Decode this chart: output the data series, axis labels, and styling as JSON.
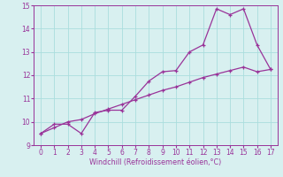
{
  "xlabel": "Windchill (Refroidissement éolien,°C)",
  "x_values": [
    0,
    1,
    2,
    3,
    4,
    5,
    6,
    7,
    8,
    9,
    10,
    11,
    12,
    13,
    14,
    15,
    16,
    17
  ],
  "y_curve": [
    9.5,
    9.9,
    9.9,
    9.5,
    10.4,
    10.5,
    10.5,
    11.1,
    11.75,
    12.15,
    12.2,
    13.0,
    13.3,
    14.85,
    14.6,
    14.85,
    13.3,
    12.25
  ],
  "y_line": [
    9.5,
    9.75,
    10.0,
    10.1,
    10.35,
    10.55,
    10.75,
    10.95,
    11.15,
    11.35,
    11.5,
    11.7,
    11.9,
    12.05,
    12.2,
    12.35,
    12.15,
    12.25
  ],
  "line_color": "#993399",
  "bg_color": "#d8f0f0",
  "grid_color": "#aadddd",
  "ylim": [
    9,
    15
  ],
  "xlim": [
    -0.5,
    17.5
  ],
  "yticks": [
    9,
    10,
    11,
    12,
    13,
    14,
    15
  ],
  "xticks": [
    0,
    1,
    2,
    3,
    4,
    5,
    6,
    7,
    8,
    9,
    10,
    11,
    12,
    13,
    14,
    15,
    16,
    17
  ]
}
